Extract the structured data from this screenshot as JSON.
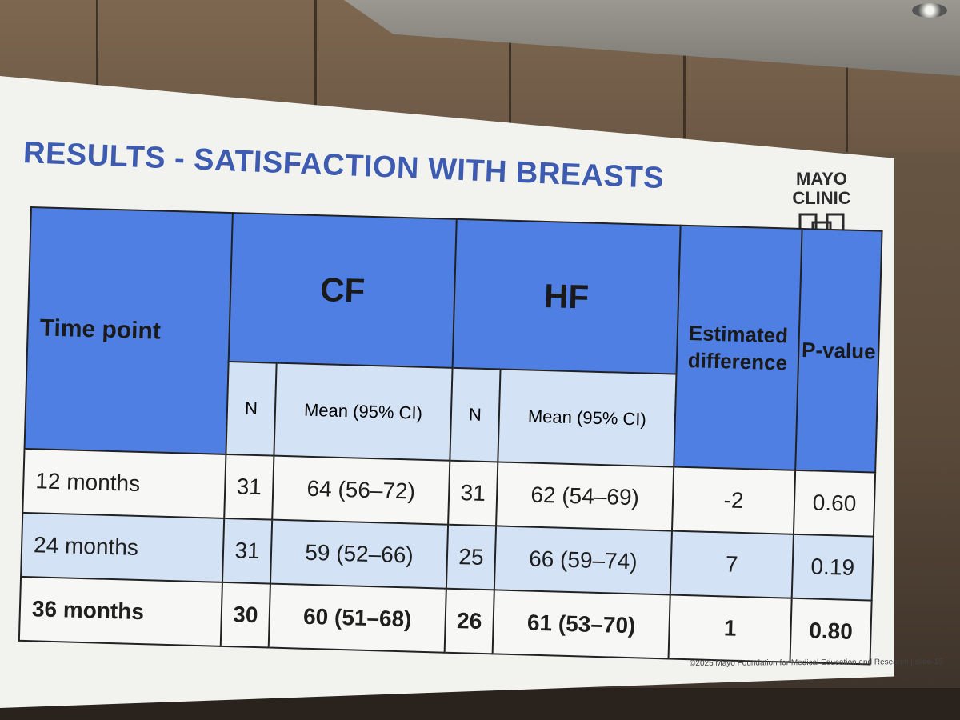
{
  "slide": {
    "title": "RESULTS - SATISFACTION WITH BREASTS",
    "logo": {
      "line1": "MAYO",
      "line2": "CLINIC"
    },
    "footer": "©2025 Mayo Foundation for Medical Education and Research | slide-15"
  },
  "table": {
    "headers": {
      "time_point": "Time point",
      "group1": "CF",
      "group2": "HF",
      "estimated_difference": "Estimated difference",
      "p_value": "P-value",
      "n": "N",
      "mean": "Mean (95% CI)"
    },
    "rows": [
      {
        "time_point": "12 months",
        "cf_n": "31",
        "cf_mean": "64 (56–72)",
        "hf_n": "31",
        "hf_mean": "62 (54–69)",
        "diff": "-2",
        "p": "0.60"
      },
      {
        "time_point": "24 months",
        "cf_n": "31",
        "cf_mean": "59 (52–66)",
        "hf_n": "25",
        "hf_mean": "66 (59–74)",
        "diff": "7",
        "p": "0.19"
      },
      {
        "time_point": "36 months",
        "cf_n": "30",
        "cf_mean": "60 (51–68)",
        "hf_n": "26",
        "hf_mean": "61 (53–70)",
        "diff": "1",
        "p": "0.80"
      }
    ]
  },
  "colors": {
    "header_blue": "#4f7fe3",
    "subheader_light_blue": "#d3e2f5",
    "title_blue": "#3d5bb0"
  }
}
